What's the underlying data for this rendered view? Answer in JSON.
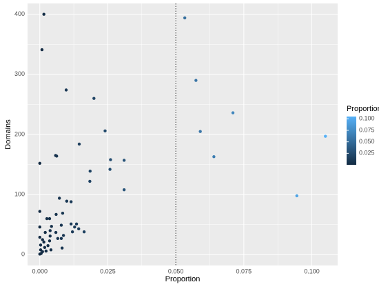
{
  "chart_data": {
    "type": "scatter",
    "x_label": "Proportion",
    "y_label": "Domains",
    "xlim": [
      -0.0045,
      0.1095
    ],
    "ylim": [
      -18,
      418
    ],
    "xticks": [
      {
        "value": 0,
        "label": "0.000"
      },
      0.025,
      {
        "value": 0.05,
        "label": "0.050"
      },
      0.075,
      {
        "value": 0.1,
        "label": "0.100"
      }
    ],
    "yticks": [
      0,
      100,
      200,
      300,
      400
    ],
    "grid": true,
    "vline": 0.05,
    "legend": {
      "title": "Proportion",
      "position": "right",
      "low": "#132B43",
      "high": "#56B1F7",
      "lim": [
        0,
        0.105
      ],
      "ticks": [
        0.025,
        {
          "value": 0.05,
          "label": "0.050"
        },
        0.075,
        {
          "value": 0.1,
          "label": "0.100"
        }
      ]
    },
    "series": [
      {
        "name": "Proportion",
        "x": [
          0.0015,
          0.0008,
          0.0097,
          0.0199,
          0.024,
          0.0145,
          0.0058,
          0.0062,
          0,
          0.026,
          0.031,
          0.0258,
          0.0185,
          0.0184,
          0.031,
          0.0533,
          0.0574,
          0.071,
          0.059,
          0.064,
          0.105,
          0.0945,
          0,
          0.0072,
          0.0099,
          0.0115,
          0.0026,
          0.0036,
          0.0084,
          0.006,
          0,
          0.0043,
          0.0115,
          0.0128,
          0.0135,
          0.0079,
          0.002,
          0.0038,
          0.0038,
          0.0059,
          0.0066,
          0.0079,
          0.0015,
          0.0003,
          0.001,
          0,
          0.0003,
          0.001,
          0.0005,
          0,
          0.0018,
          0.003,
          0.0041,
          0.0023,
          0.0143,
          0.0163,
          0.012,
          0.0087,
          0.0082,
          0.0036
        ],
        "values": [
          400,
          341,
          274,
          260,
          206,
          184,
          165,
          164,
          152,
          158,
          157,
          142,
          139,
          122,
          108,
          394,
          290,
          236,
          205,
          163,
          197,
          98,
          72,
          94,
          89,
          88,
          60,
          60,
          69,
          67,
          46,
          47,
          51,
          46,
          51,
          49,
          37,
          40,
          31,
          37,
          27,
          27,
          21,
          16,
          25,
          29,
          8,
          5,
          2,
          1,
          12,
          15,
          8,
          6,
          43,
          38,
          38,
          32,
          11,
          23
        ]
      }
    ]
  }
}
